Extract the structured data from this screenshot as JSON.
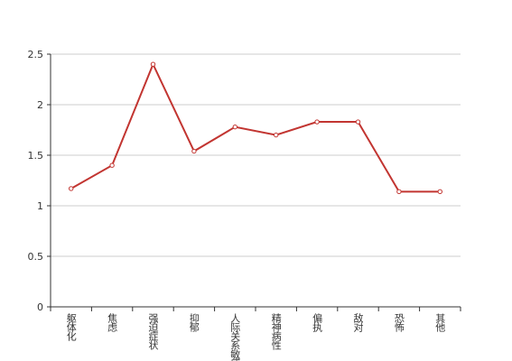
{
  "chart_data": {
    "type": "line",
    "categories": [
      "躯体化",
      "焦虑",
      "强迫症状",
      "抑郁",
      "人际关系敏感",
      "精神病性",
      "偏执",
      "敌对",
      "恐怖",
      "其他"
    ],
    "series": [
      {
        "color": "#c23531",
        "values": [
          1.17,
          1.4,
          2.4,
          1.54,
          1.78,
          1.7,
          1.83,
          1.83,
          1.14,
          1.14
        ]
      }
    ],
    "ylim": [
      0,
      2.5
    ],
    "yticks": [
      0,
      0.5,
      1,
      1.5,
      2,
      2.5
    ],
    "grid": true
  }
}
